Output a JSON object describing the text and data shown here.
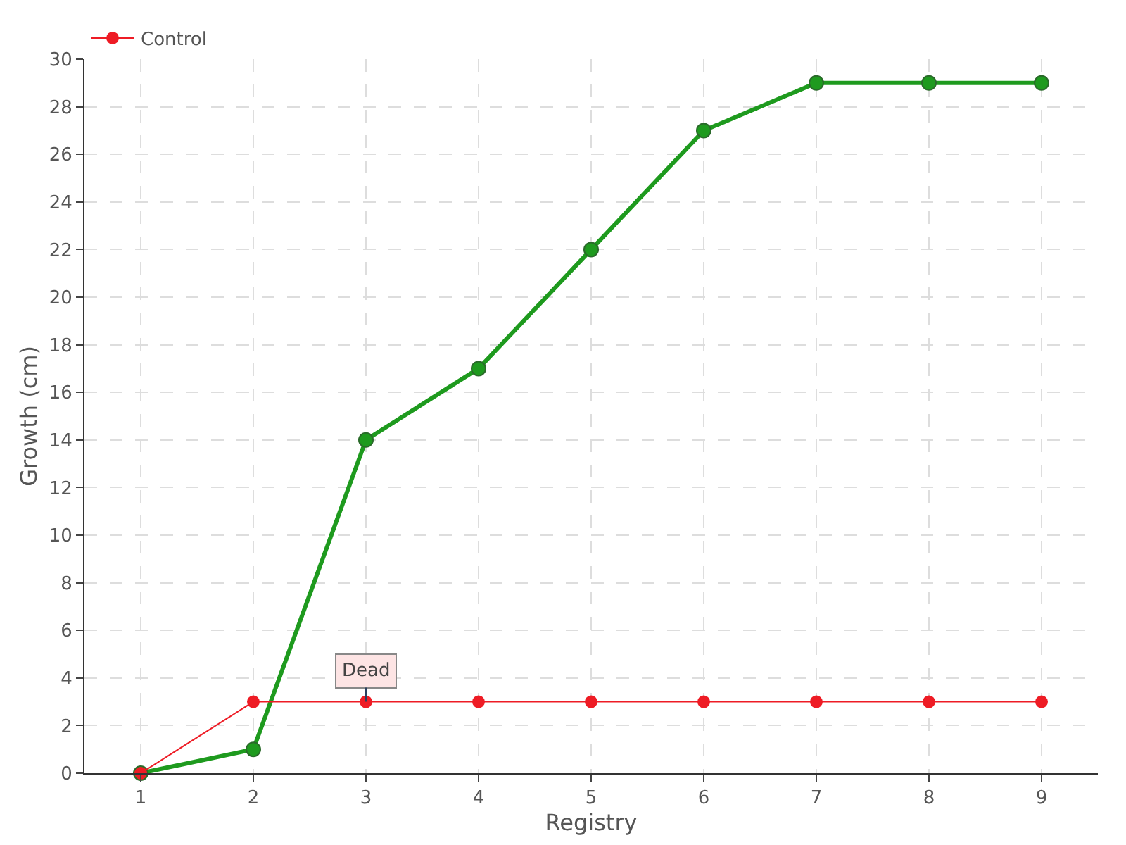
{
  "chart_data": {
    "type": "line",
    "xlabel": "Registry",
    "ylabel": "Growth (cm)",
    "categories": [
      "1",
      "2",
      "3",
      "4",
      "5",
      "6",
      "7",
      "8",
      "9"
    ],
    "series": [
      {
        "color": "#1e9a1e",
        "values": [
          0,
          1,
          14,
          17,
          22,
          27,
          29,
          29,
          29
        ]
      },
      {
        "name": "Control",
        "color": "#ee1c25",
        "values": [
          0,
          3,
          3,
          3,
          3,
          3,
          3,
          3,
          3
        ]
      }
    ],
    "ylim": [
      0,
      30
    ],
    "yticks": [
      0,
      2,
      4,
      6,
      8,
      10,
      12,
      14,
      16,
      18,
      20,
      22,
      24,
      26,
      28,
      30
    ],
    "annotations": [
      {
        "text": "Dead",
        "x": "3",
        "y": 3
      }
    ],
    "grid": true,
    "legend": "top left",
    "marker": "circle",
    "line_style": "solid"
  }
}
